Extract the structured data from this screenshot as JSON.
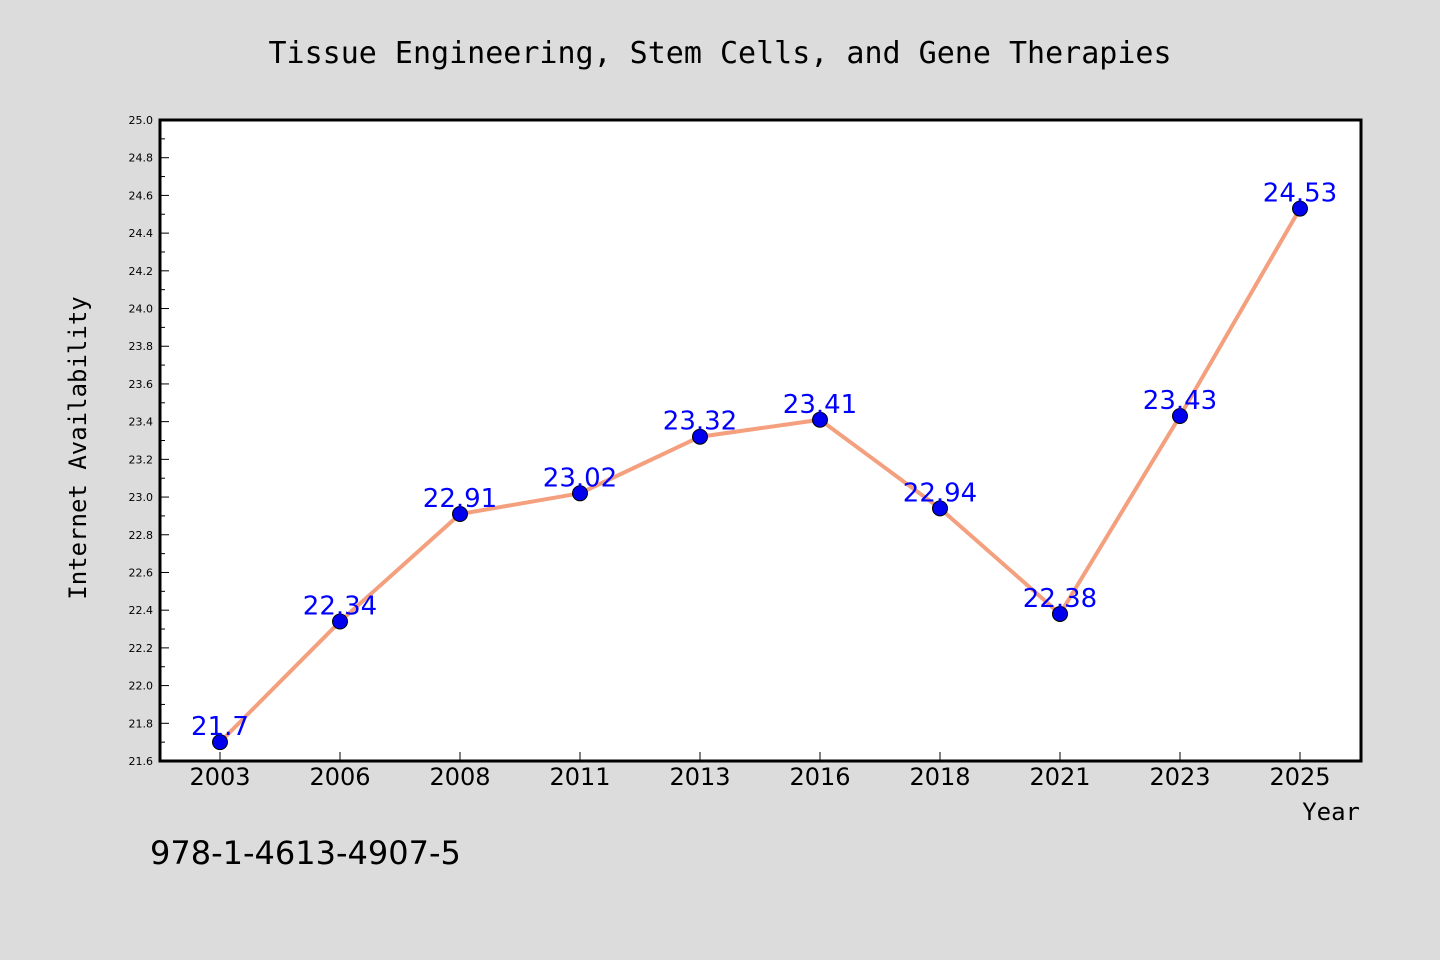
{
  "chart_data": {
    "type": "line",
    "title": "Tissue Engineering, Stem Cells, and Gene Therapies",
    "xlabel": "Year",
    "ylabel": "Internet Availability",
    "categories": [
      "2003",
      "2006",
      "2008",
      "2011",
      "2013",
      "2016",
      "2018",
      "2021",
      "2023",
      "2025"
    ],
    "series": [
      {
        "values": [
          21.7,
          22.34,
          22.91,
          23.02,
          23.32,
          23.41,
          22.94,
          22.38,
          23.43,
          24.53
        ],
        "labels": [
          "21.7",
          "22.34",
          "22.91",
          "23.02",
          "23.32",
          "23.41",
          "22.94",
          "22.38",
          "23.43",
          "24.53"
        ]
      }
    ],
    "ylim": [
      21.6,
      25.0
    ],
    "yticks": [
      "21.6",
      "21.8",
      "22.0",
      "22.2",
      "22.4",
      "22.6",
      "22.8",
      "23.0",
      "23.2",
      "23.4",
      "23.6",
      "23.8",
      "24.0",
      "24.2",
      "24.4",
      "24.6",
      "24.8",
      "25.0"
    ],
    "grid": false,
    "legend": "none",
    "colors": {
      "line": "#f4a07e",
      "marker": "#0000ee",
      "data_label": "#0000ff",
      "background": "#dcdcdc",
      "plot_background": "#ffffff"
    }
  },
  "footer": {
    "isbn": "978-1-4613-4907-5"
  }
}
